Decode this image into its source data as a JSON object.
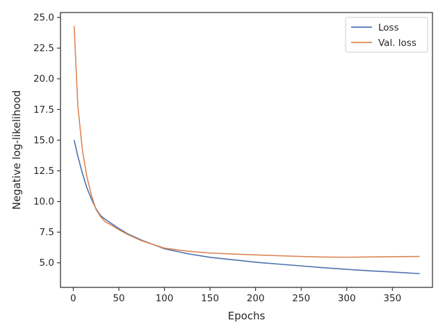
{
  "chart_data": {
    "type": "line",
    "title": "",
    "xlabel": "Epochs",
    "ylabel": "Negative log-likelihood",
    "xlim": [
      -14,
      394
    ],
    "ylim": [
      3.0,
      25.4
    ],
    "x_ticks": [
      0,
      50,
      100,
      150,
      200,
      250,
      300,
      350
    ],
    "y_ticks": [
      5.0,
      7.5,
      10.0,
      12.5,
      15.0,
      17.5,
      20.0,
      22.5,
      25.0
    ],
    "x_tick_labels": [
      "0",
      "50",
      "100",
      "150",
      "200",
      "250",
      "300",
      "350"
    ],
    "y_tick_labels": [
      "5.0",
      "7.5",
      "10.0",
      "12.5",
      "15.0",
      "17.5",
      "20.0",
      "22.5",
      "25.0"
    ],
    "grid": false,
    "legend_position": "top-right",
    "x": [
      1,
      5,
      10,
      15,
      20,
      25,
      30,
      35,
      40,
      50,
      60,
      75,
      100,
      125,
      150,
      175,
      200,
      225,
      250,
      275,
      300,
      325,
      350,
      380
    ],
    "series": [
      {
        "name": "Loss",
        "color": "#4c72b0",
        "values": [
          15.0,
          13.7,
          12.3,
          11.1,
          10.2,
          9.4,
          8.85,
          8.55,
          8.3,
          7.8,
          7.35,
          6.85,
          6.15,
          5.75,
          5.45,
          5.25,
          5.05,
          4.9,
          4.75,
          4.6,
          4.47,
          4.35,
          4.25,
          4.12
        ]
      },
      {
        "name": "Val. loss",
        "color": "#dd8452",
        "values": [
          24.3,
          17.8,
          14.2,
          12.0,
          10.5,
          9.35,
          8.75,
          8.35,
          8.15,
          7.7,
          7.3,
          6.8,
          6.2,
          5.95,
          5.8,
          5.72,
          5.65,
          5.58,
          5.52,
          5.47,
          5.46,
          5.48,
          5.5,
          5.52
        ]
      }
    ]
  }
}
